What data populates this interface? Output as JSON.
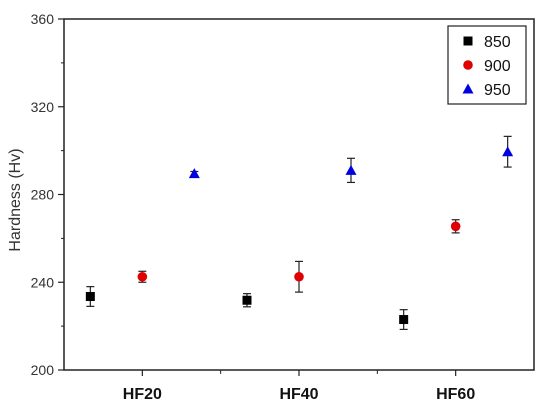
{
  "chart_data": {
    "type": "scatter",
    "categories": [
      "HF20",
      "HF40",
      "HF60"
    ],
    "ylabel": "Hardness (Hv)",
    "xlabel": "",
    "ylim": [
      200,
      360
    ],
    "yticks": [
      200,
      240,
      280,
      320,
      360
    ],
    "grid": false,
    "legend_position": "top-right",
    "series": [
      {
        "name": "850",
        "marker": "square",
        "color": "#000000",
        "values": [
          233.5,
          231.8,
          223.0
        ],
        "errors": [
          4.5,
          3.0,
          4.5
        ]
      },
      {
        "name": "900",
        "marker": "circle",
        "color": "#e00000",
        "values": [
          242.5,
          242.5,
          265.5
        ],
        "errors": [
          2.5,
          7.0,
          3.0
        ]
      },
      {
        "name": "950",
        "marker": "triangle",
        "color": "#0000e0",
        "values": [
          289.5,
          291.0,
          299.5
        ],
        "errors": [
          1.0,
          5.5,
          7.0
        ]
      }
    ]
  }
}
